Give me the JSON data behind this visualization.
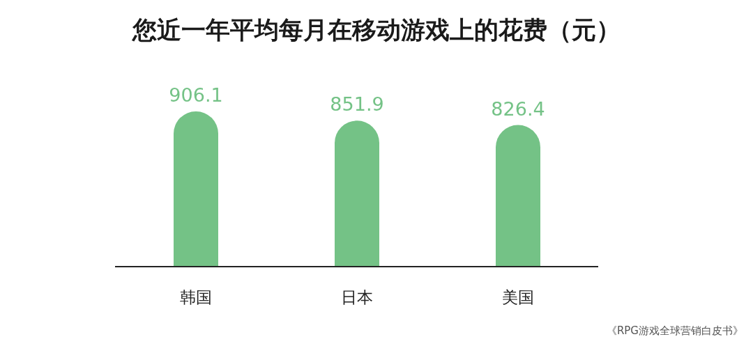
{
  "chart_data": {
    "type": "bar",
    "title": "您近一年平均每月在移动游戏上的花费（元）",
    "categories": [
      "韩国",
      "日本",
      "美国"
    ],
    "values": [
      906.1,
      851.9,
      826.4
    ],
    "color": "#74c286",
    "data_labels": true,
    "grid": false,
    "annotations": [
      "《RPG游戏全球营销白皮书》"
    ]
  }
}
